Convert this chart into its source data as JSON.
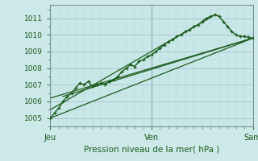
{
  "title": "Pression niveau de la mer( hPa )",
  "bg_color": "#cce8e8",
  "plot_bg_color": "#c8e8e8",
  "grid_color_major": "#aabbcc",
  "grid_color_minor": "#bbccdd",
  "line_color": "#1a5c1a",
  "xlim": [
    0,
    48
  ],
  "ylim": [
    1004.5,
    1011.8
  ],
  "yticks": [
    1005,
    1006,
    1007,
    1008,
    1009,
    1010,
    1011
  ],
  "day_labels": [
    "Jeu",
    "Ven",
    "Sam"
  ],
  "day_positions": [
    0,
    24,
    48
  ],
  "main_data_x": [
    0,
    1,
    2,
    3,
    4,
    5,
    6,
    7,
    8,
    9,
    10,
    11,
    12,
    13,
    14,
    15,
    16,
    17,
    18,
    19,
    20,
    21,
    22,
    23,
    24,
    25,
    26,
    27,
    28,
    29,
    30,
    31,
    32,
    33,
    34,
    35,
    36,
    37,
    38,
    39,
    40,
    41,
    42,
    43,
    44,
    45,
    46,
    47,
    48
  ],
  "main_data_y": [
    1005.0,
    1005.3,
    1005.6,
    1006.0,
    1006.3,
    1006.5,
    1006.8,
    1007.1,
    1007.0,
    1007.2,
    1006.9,
    1007.0,
    1007.1,
    1007.0,
    1007.2,
    1007.3,
    1007.5,
    1007.8,
    1008.0,
    1008.2,
    1008.1,
    1008.4,
    1008.5,
    1008.7,
    1008.8,
    1009.0,
    1009.2,
    1009.4,
    1009.6,
    1009.7,
    1009.9,
    1010.0,
    1010.2,
    1010.3,
    1010.5,
    1010.6,
    1010.8,
    1011.0,
    1011.1,
    1011.2,
    1011.1,
    1010.8,
    1010.5,
    1010.2,
    1010.0,
    1009.9,
    1009.9,
    1009.85,
    1009.8
  ],
  "trend_line1_x": [
    0,
    48
  ],
  "trend_line1_y": [
    1005.0,
    1009.8
  ],
  "trend_line2_x": [
    0,
    39
  ],
  "trend_line2_y": [
    1005.5,
    1011.2
  ],
  "trend_line3_x": [
    0,
    48
  ],
  "trend_line3_y": [
    1006.2,
    1009.8
  ],
  "trend_line4_x": [
    3,
    48
  ],
  "trend_line4_y": [
    1006.3,
    1009.8
  ],
  "vline_color": "#446655"
}
